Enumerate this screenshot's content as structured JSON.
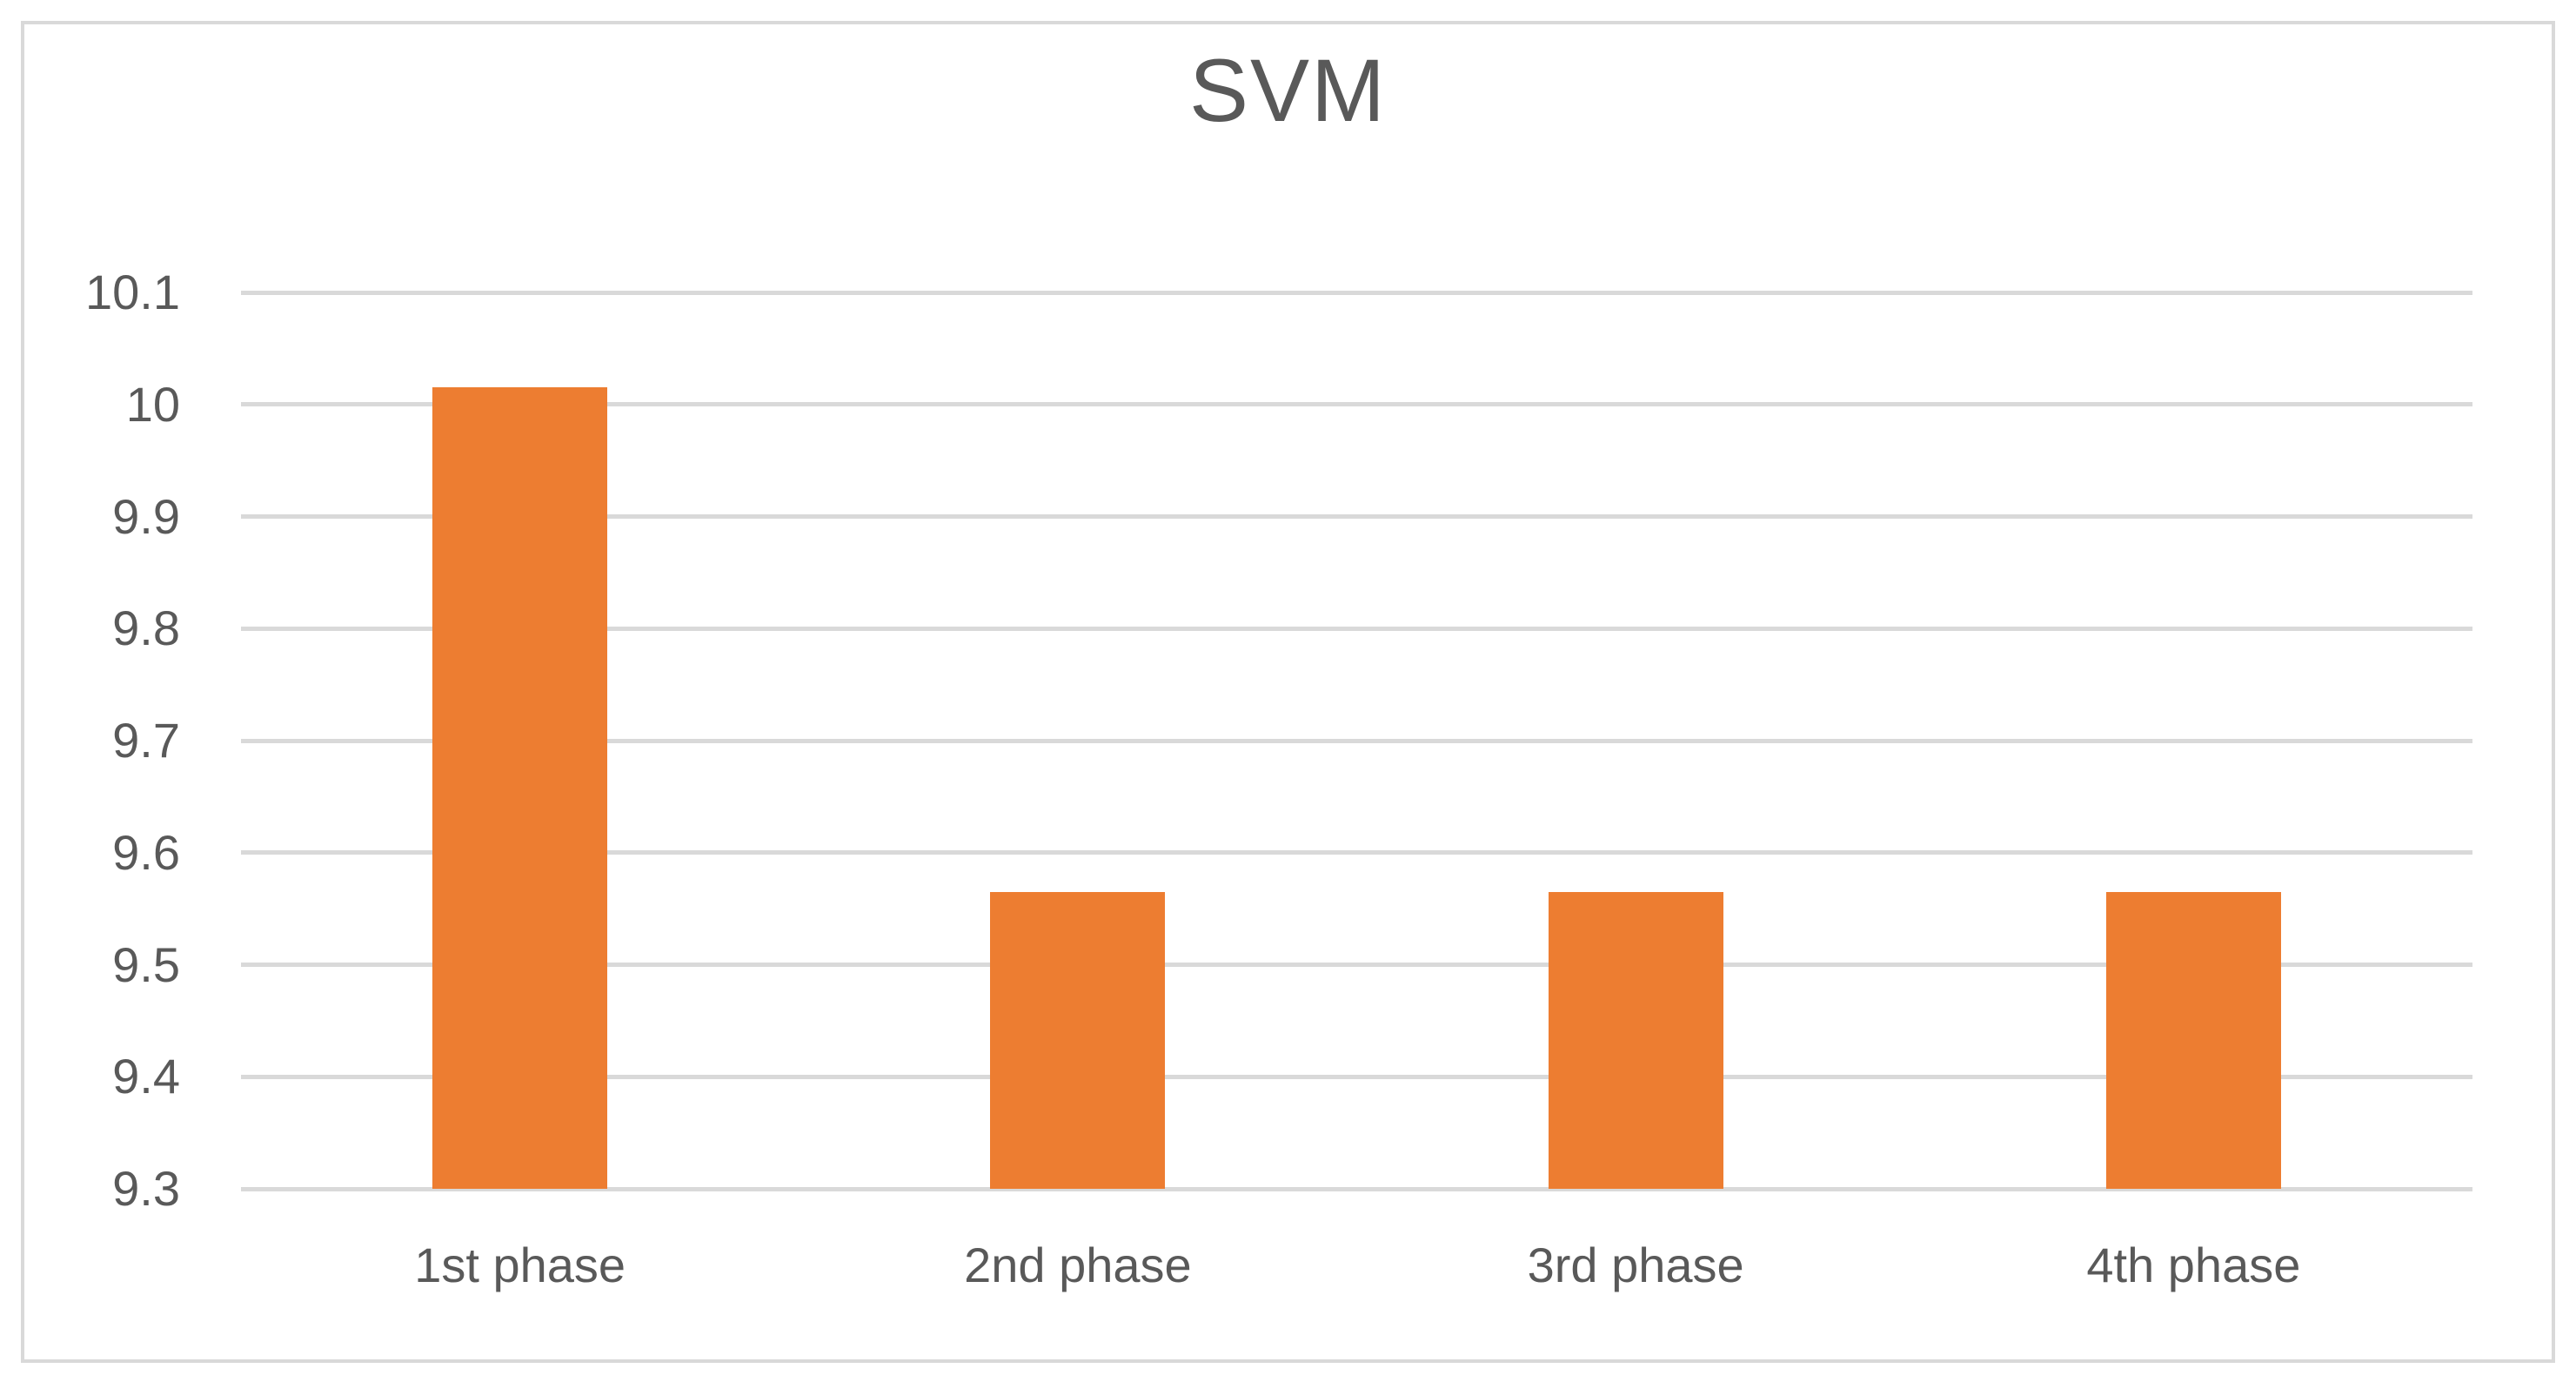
{
  "chart_data": {
    "type": "bar",
    "title": "SVM",
    "categories": [
      "1st phase",
      "2nd phase",
      "3rd phase",
      "4th phase"
    ],
    "values": [
      10.015,
      9.565,
      9.565,
      9.565
    ],
    "series": [
      {
        "name": "SVM",
        "values": [
          10.015,
          9.565,
          9.565,
          9.565
        ]
      }
    ],
    "xlabel": "",
    "ylabel": "",
    "ylim": [
      9.3,
      10.1
    ],
    "y_ticks": [
      10.1,
      10,
      9.9,
      9.8,
      9.7,
      9.6,
      9.5,
      9.4,
      9.3
    ],
    "y_tick_labels": [
      "10.1",
      "10",
      "9.9",
      "9.8",
      "9.7",
      "9.6",
      "9.5",
      "9.4",
      "9.3"
    ],
    "grid": "horizontal",
    "legend_position": "none",
    "colors": {
      "bar_fill": "#ED7D31",
      "gridline": "#D9D9D9",
      "frame_border": "#D9D9D9",
      "text": "#595959",
      "background": "#FFFFFF"
    },
    "bar_gap_ratio": 2.19
  }
}
